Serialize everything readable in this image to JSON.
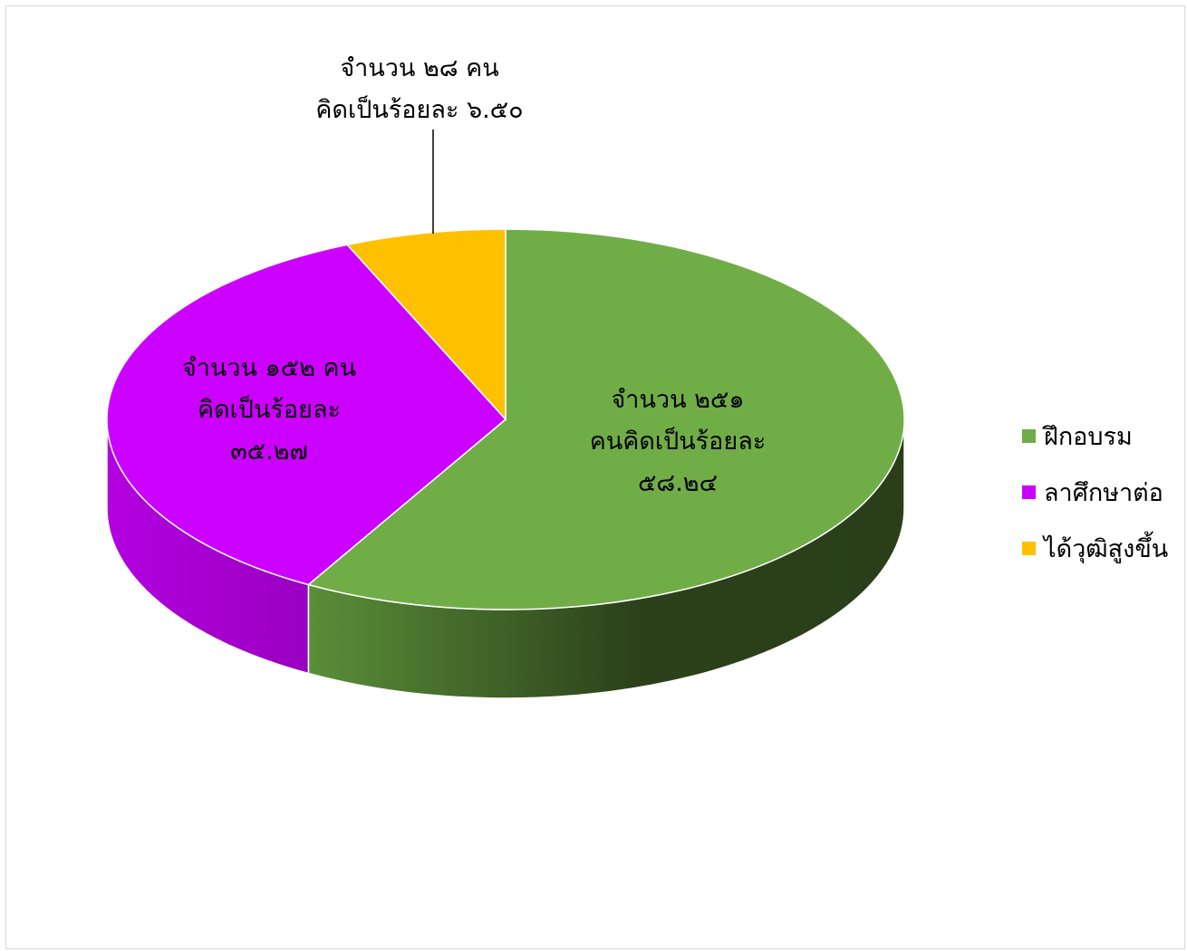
{
  "chart_data": {
    "type": "pie",
    "style": "3d",
    "legend_position": "right",
    "slices": [
      {
        "name": "ฝึกอบรม",
        "count": 251,
        "percent": 58.24,
        "color": "#70ad47",
        "side_color_dark": "#2c411b",
        "label_lines": [
          "จำนวน ๒๕๑",
          "คนคิดเป็นร้อยละ",
          "๕๘.๒๔"
        ]
      },
      {
        "name": "ลาศึกษาต่อ",
        "count": 152,
        "percent": 35.27,
        "color": "#cc00ff",
        "side_color_dark": "#9a00c0",
        "label_lines": [
          "จำนวน ๑๕๒ คน",
          "คิดเป็นร้อยละ",
          "๓๕.๒๗"
        ]
      },
      {
        "name": "ได้วุฒิสูงขึ้น",
        "count": 28,
        "percent": 6.5,
        "color": "#ffc000",
        "side_color_dark": "#b38600",
        "label_lines": [
          "จำนวน ๒๘ คน",
          "คิดเป็นร้อยละ ๖.๕๐"
        ]
      }
    ]
  }
}
